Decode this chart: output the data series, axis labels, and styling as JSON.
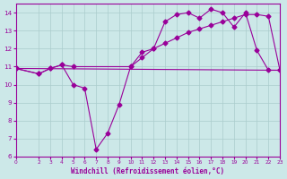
{
  "bg_color": "#cce8e8",
  "grid_color": "#aacccc",
  "line_color": "#990099",
  "marker": "D",
  "markersize": 2.5,
  "xlabel": "Windchill (Refroidissement éolien,°C)",
  "xlim": [
    0,
    23
  ],
  "ylim": [
    6,
    14.5
  ],
  "yticks": [
    6,
    7,
    8,
    9,
    10,
    11,
    12,
    13,
    14
  ],
  "xticks": [
    0,
    2,
    3,
    4,
    5,
    6,
    7,
    8,
    9,
    10,
    11,
    12,
    13,
    14,
    15,
    16,
    17,
    18,
    19,
    20,
    21,
    22,
    23
  ],
  "line1_x": [
    0,
    2,
    3,
    4,
    5,
    6,
    7,
    8,
    9,
    10,
    11,
    12,
    13,
    14,
    15,
    16,
    17,
    18,
    19,
    20,
    21,
    22,
    23
  ],
  "line1_y": [
    10.9,
    10.6,
    10.9,
    11.1,
    10.0,
    9.8,
    6.4,
    7.3,
    8.9,
    11.0,
    11.8,
    12.0,
    13.5,
    13.9,
    14.0,
    13.7,
    14.2,
    14.0,
    13.2,
    14.0,
    11.9,
    10.8,
    10.8
  ],
  "line2_x": [
    0,
    2,
    3,
    4,
    5,
    10,
    11,
    12,
    13,
    14,
    15,
    16,
    17,
    18,
    19,
    20,
    21,
    22,
    23
  ],
  "line2_y": [
    10.9,
    10.6,
    10.9,
    11.1,
    11.0,
    11.0,
    11.5,
    12.0,
    12.3,
    12.6,
    12.9,
    13.1,
    13.3,
    13.5,
    13.7,
    13.9,
    13.9,
    13.8,
    10.8
  ],
  "line3_x": [
    0,
    23
  ],
  "line3_y": [
    10.9,
    10.8
  ]
}
